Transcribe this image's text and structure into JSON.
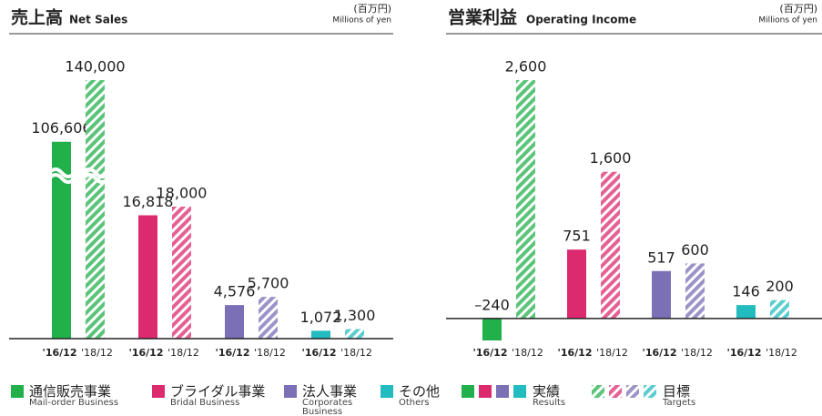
{
  "chart_data": [
    {
      "type": "bar",
      "title": "売上高",
      "subtitle": "Net Sales",
      "unit": "(百万円)",
      "unit_en": "Millions of yen",
      "broken_axis": true,
      "ylim": [
        0,
        35250
      ],
      "series": [
        {
          "name": "'16/12",
          "values": [
            106606,
            16818,
            4576,
            1072
          ],
          "value_labels": [
            "106,606",
            "16,818",
            "4,576",
            "1,072"
          ]
        },
        {
          "name": "'18/12",
          "hatched": true,
          "values": [
            140000,
            18000,
            5700,
            1300
          ],
          "value_labels": [
            "140,000",
            "18,000",
            "5,700",
            "1,300"
          ]
        }
      ]
    },
    {
      "type": "bar",
      "title": "営業利益",
      "subtitle": "Operating Income",
      "unit": "(百万円)",
      "unit_en": "Millions of yen",
      "ylim": [
        -250,
        2600
      ],
      "series": [
        {
          "name": "'16/12",
          "values": [
            -240,
            751,
            517,
            146
          ],
          "value_labels": [
            "–240",
            "751",
            "517",
            "146"
          ]
        },
        {
          "name": "'18/12",
          "hatched": true,
          "values": [
            2600,
            1600,
            600,
            200
          ],
          "value_labels": [
            "2,600",
            "1,600",
            "600",
            "200"
          ]
        }
      ]
    }
  ],
  "legend": {
    "segments": [
      {
        "name": "通信販売事業",
        "name_en": "Mail-order Business",
        "color": "#22b04b"
      },
      {
        "name": "ブライダル事業",
        "name_en": "Bridal Business",
        "color": "#dc2a6f"
      },
      {
        "name": "法人事業",
        "name_en": "Corporates Business",
        "color": "#7b6fb6"
      },
      {
        "name": "その他",
        "name_en": "Others",
        "color": "#22bcc0"
      }
    ],
    "results": {
      "name": "実績",
      "name_en": "Results"
    },
    "targets": {
      "name": "目標",
      "name_en": "Targets"
    }
  }
}
